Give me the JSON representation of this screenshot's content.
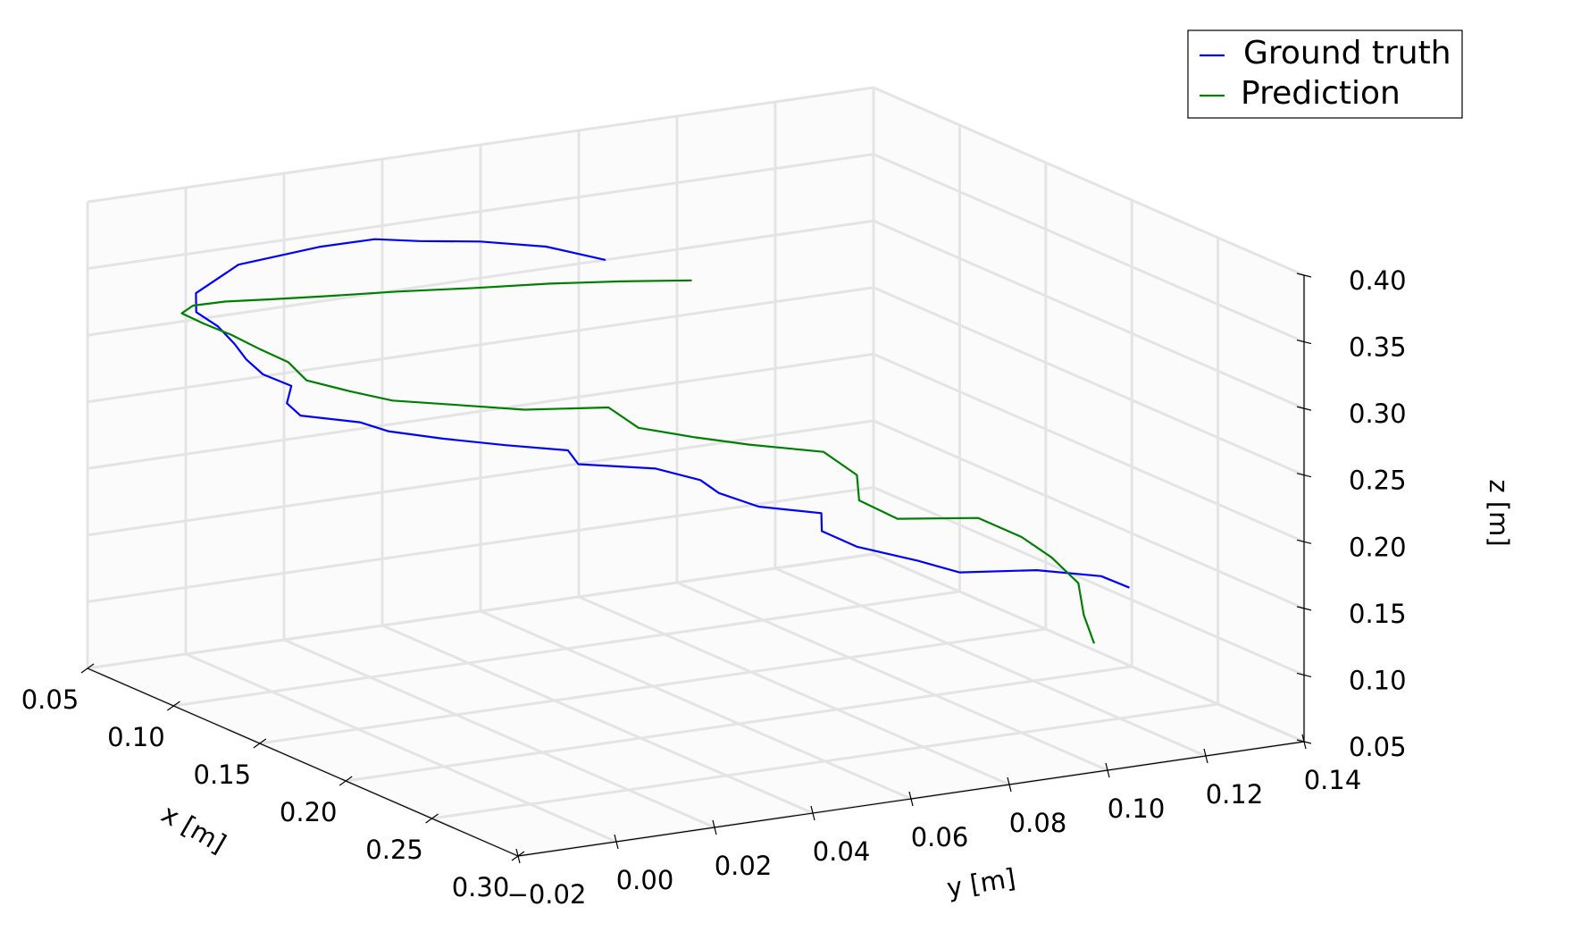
{
  "chart_data": {
    "type": "line",
    "projection": "3d",
    "xlabel": "x [m]",
    "ylabel": "y [m]",
    "zlabel": "z [m]",
    "x_ticks": [
      "0.05",
      "0.10",
      "0.15",
      "0.20",
      "0.25",
      "0.30"
    ],
    "y_ticks": [
      "−0.02",
      "0.00",
      "0.02",
      "0.04",
      "0.06",
      "0.08",
      "0.10",
      "0.12",
      "0.14"
    ],
    "z_ticks": [
      "0.05",
      "0.10",
      "0.15",
      "0.20",
      "0.25",
      "0.30",
      "0.35",
      "0.40"
    ],
    "xlim": [
      0.05,
      0.3
    ],
    "ylim": [
      -0.02,
      0.14
    ],
    "zlim": [
      0.05,
      0.4
    ],
    "grid": true,
    "legend_position": "top-right",
    "series": [
      {
        "name": "Ground truth",
        "color": "#0000ff",
        "points": [
          [
            0.23,
            0.129,
            0.132
          ],
          [
            0.225,
            0.125,
            0.14
          ],
          [
            0.219,
            0.114,
            0.147
          ],
          [
            0.214,
            0.1,
            0.15
          ],
          [
            0.207,
            0.094,
            0.158
          ],
          [
            0.2,
            0.084,
            0.17
          ],
          [
            0.194,
            0.079,
            0.181
          ],
          [
            0.188,
            0.081,
            0.19
          ],
          [
            0.183,
            0.07,
            0.198
          ],
          [
            0.177,
            0.064,
            0.208
          ],
          [
            0.172,
            0.062,
            0.216
          ],
          [
            0.166,
            0.055,
            0.225
          ],
          [
            0.161,
            0.041,
            0.233
          ],
          [
            0.155,
            0.041,
            0.24
          ],
          [
            0.15,
            0.03,
            0.247
          ],
          [
            0.145,
            0.019,
            0.255
          ],
          [
            0.139,
            0.01,
            0.262
          ],
          [
            0.134,
            0.006,
            0.268
          ],
          [
            0.128,
            -0.004,
            0.275
          ],
          [
            0.123,
            -0.005,
            0.282
          ],
          [
            0.117,
            -0.002,
            0.29
          ],
          [
            0.112,
            -0.006,
            0.298
          ],
          [
            0.108,
            -0.008,
            0.308
          ],
          [
            0.104,
            -0.009,
            0.318
          ],
          [
            0.1,
            -0.011,
            0.33
          ],
          [
            0.096,
            -0.014,
            0.34
          ],
          [
            0.093,
            -0.013,
            0.352
          ],
          [
            0.092,
            -0.004,
            0.368
          ],
          [
            0.094,
            0.012,
            0.374
          ],
          [
            0.097,
            0.022,
            0.376
          ],
          [
            0.1,
            0.03,
            0.372
          ],
          [
            0.104,
            0.041,
            0.368
          ],
          [
            0.108,
            0.053,
            0.36
          ],
          [
            0.111,
            0.058,
            0.354
          ],
          [
            0.114,
            0.063,
            0.348
          ]
        ]
      },
      {
        "name": "Prediction",
        "color": "#008000",
        "points": [
          [
            0.238,
            0.119,
            0.1
          ],
          [
            0.232,
            0.119,
            0.118
          ],
          [
            0.226,
            0.12,
            0.138
          ],
          [
            0.219,
            0.117,
            0.155
          ],
          [
            0.213,
            0.113,
            0.169
          ],
          [
            0.205,
            0.107,
            0.182
          ],
          [
            0.198,
            0.093,
            0.185
          ],
          [
            0.19,
            0.088,
            0.197
          ],
          [
            0.183,
            0.09,
            0.211
          ],
          [
            0.175,
            0.086,
            0.226
          ],
          [
            0.169,
            0.073,
            0.235
          ],
          [
            0.163,
            0.064,
            0.242
          ],
          [
            0.156,
            0.055,
            0.25
          ],
          [
            0.15,
            0.051,
            0.264
          ],
          [
            0.144,
            0.036,
            0.267
          ],
          [
            0.139,
            0.023,
            0.275
          ],
          [
            0.133,
            0.013,
            0.28
          ],
          [
            0.128,
            0.006,
            0.288
          ],
          [
            0.123,
            -0.001,
            0.297
          ],
          [
            0.118,
            -0.003,
            0.309
          ],
          [
            0.113,
            -0.007,
            0.318
          ],
          [
            0.108,
            -0.011,
            0.328
          ],
          [
            0.103,
            -0.015,
            0.336
          ],
          [
            0.099,
            -0.018,
            0.343
          ],
          [
            0.097,
            -0.015,
            0.346
          ],
          [
            0.099,
            -0.009,
            0.347
          ],
          [
            0.102,
            -0.001,
            0.346
          ],
          [
            0.106,
            0.01,
            0.345
          ],
          [
            0.11,
            0.022,
            0.344
          ],
          [
            0.115,
            0.036,
            0.342
          ],
          [
            0.119,
            0.05,
            0.34
          ],
          [
            0.123,
            0.063,
            0.337
          ],
          [
            0.127,
            0.076,
            0.333
          ]
        ]
      }
    ]
  }
}
